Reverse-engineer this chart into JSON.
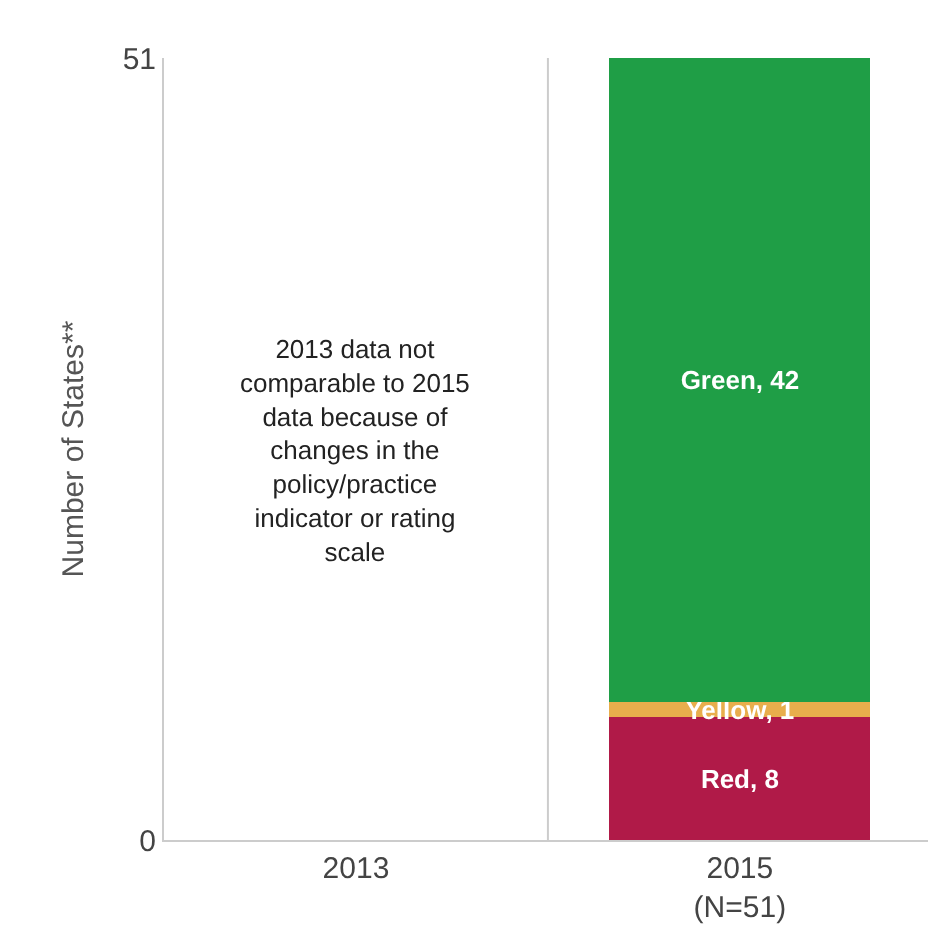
{
  "chart_data": {
    "type": "bar",
    "stacked": true,
    "ylabel": "Number of States**",
    "categories": [
      "2013",
      "2015\n(N=51)"
    ],
    "series": [
      {
        "color": "#b01a48",
        "values": [
          null,
          8
        ],
        "value_labels": [
          null,
          "Red, 8"
        ]
      },
      {
        "color": "#e8ae4c",
        "values": [
          null,
          1
        ],
        "value_labels": [
          null,
          "Yellow, 1"
        ]
      },
      {
        "color": "#1f9e46",
        "values": [
          null,
          42
        ],
        "value_labels": [
          null,
          "Green, 42"
        ]
      }
    ],
    "ylim": [
      0,
      51
    ],
    "yticks": [
      0,
      51
    ],
    "annotations": [
      "2013 data not\ncomparable to 2015\ndata because of\nchanges in the\npolicy/practice\nindicator or rating\nscale"
    ]
  }
}
